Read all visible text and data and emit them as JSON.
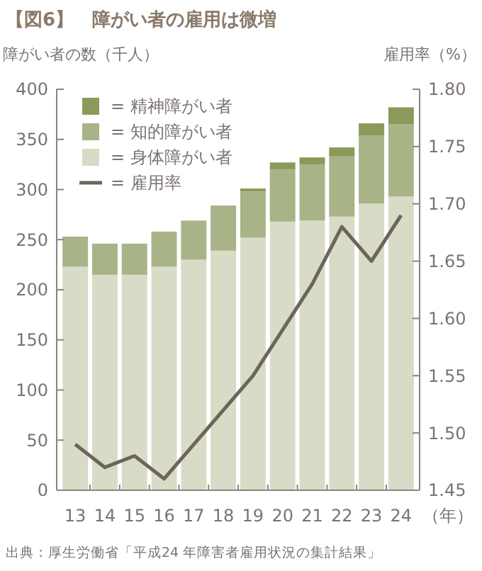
{
  "chart_data": {
    "type": "bar",
    "title": "【図6】　障がい者の雇用は微増",
    "ylabel": "障がい者の数（千人）",
    "y2label": "雇用率（%）",
    "xlabel": "（年）",
    "categories": [
      "13",
      "14",
      "15",
      "16",
      "17",
      "18",
      "19",
      "20",
      "21",
      "22",
      "23",
      "24"
    ],
    "stacked": true,
    "series": [
      {
        "name": "= 身体障がい者",
        "color": "#d8dcc6",
        "values": [
          223,
          215,
          215,
          223,
          230,
          239,
          252,
          268,
          269,
          273,
          286,
          293
        ]
      },
      {
        "name": "= 知的障がい者",
        "color": "#a8b387",
        "values": [
          30,
          31,
          31,
          35,
          39,
          45,
          46,
          52,
          56,
          60,
          68,
          72
        ]
      },
      {
        "name": "= 精神障がい者",
        "color": "#8a9a5b",
        "values": [
          0,
          0,
          0,
          0,
          0,
          0,
          3,
          7,
          7,
          9,
          12,
          17
        ]
      },
      {
        "name": "= 雇用率",
        "type": "line",
        "axis": "y2",
        "color": "#6d655c",
        "values": [
          1.49,
          1.47,
          1.48,
          1.46,
          1.49,
          1.52,
          1.55,
          1.59,
          1.63,
          1.68,
          1.65,
          1.69
        ]
      }
    ],
    "ylim": [
      0,
      400
    ],
    "yticks": [
      0,
      50,
      100,
      150,
      200,
      250,
      300,
      350,
      400
    ],
    "y2lim": [
      1.45,
      1.8
    ],
    "y2ticks": [
      {
        "value": 1.45,
        "label": "1.45"
      },
      {
        "value": 1.5,
        "label": "1.50"
      },
      {
        "value": 1.55,
        "label": "1.55"
      },
      {
        "value": 1.6,
        "label": "1.60"
      },
      {
        "value": 1.65,
        "label": "1.65"
      },
      {
        "value": 1.7,
        "label": "1.70"
      },
      {
        "value": 1.75,
        "label": "1.75"
      },
      {
        "value": 1.8,
        "label": "1.80"
      }
    ],
    "legend": "top left",
    "grid": false,
    "annotations": [
      "出典：厚生労働省「平成24 年障害者雇用状況の集計結果」"
    ]
  }
}
